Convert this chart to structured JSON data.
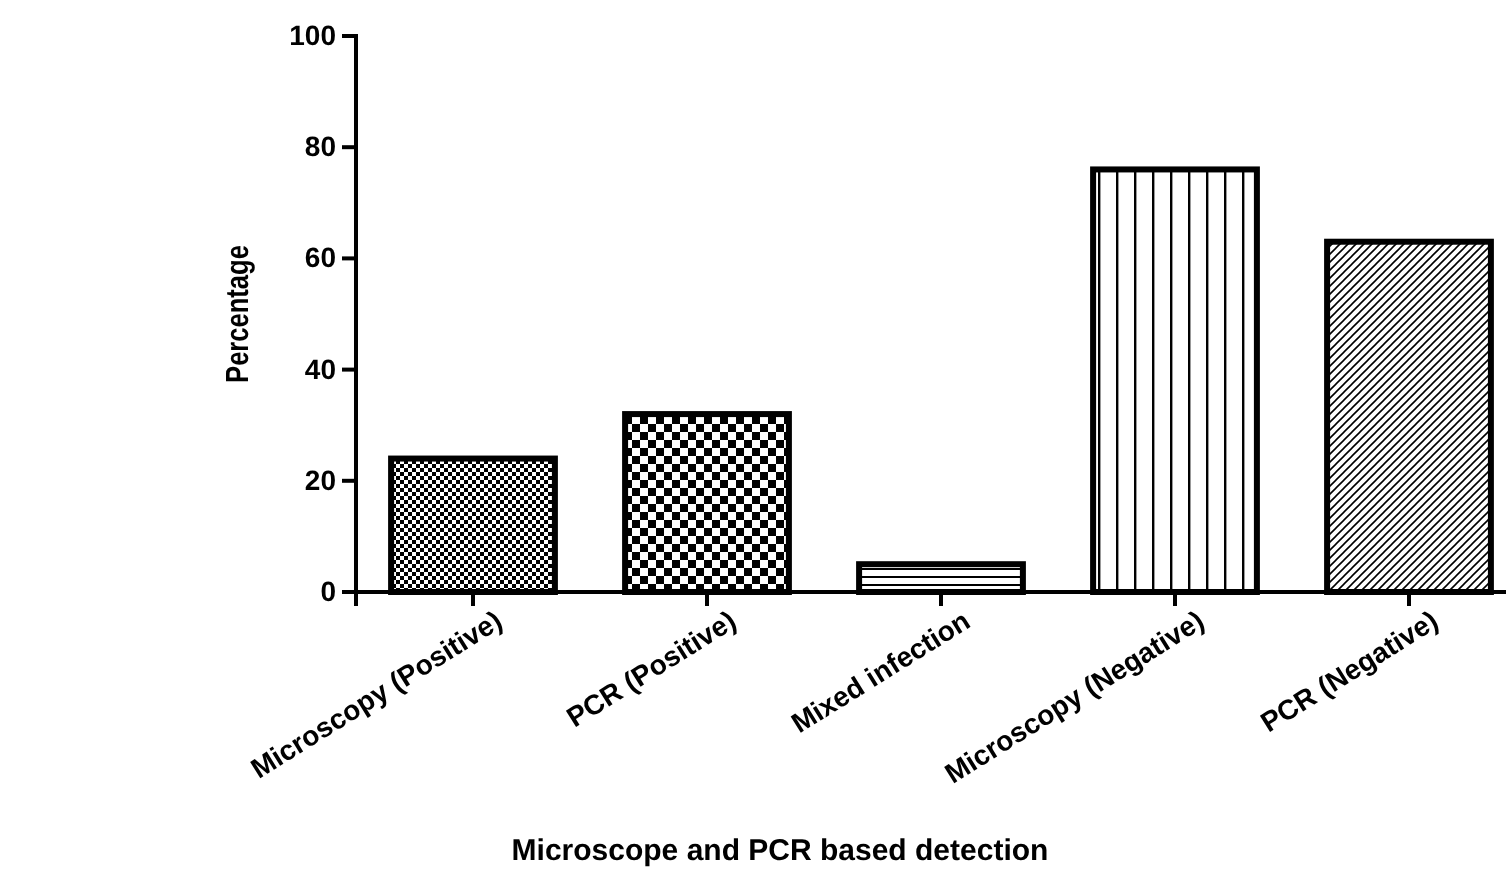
{
  "chart_data": {
    "type": "bar",
    "xlabel": "Microscope and PCR based detection",
    "ylabel": "Percentage",
    "categories": [
      "Microscopy (Positive)",
      "PCR (Positive)",
      "Mixed infection",
      "Microscopy (Negative)",
      "PCR (Negative)"
    ],
    "values": [
      24,
      32,
      5,
      76,
      63
    ],
    "color": "#000000",
    "ylim": [
      0,
      100
    ],
    "yticks": [
      0,
      20,
      40,
      60,
      80,
      100
    ],
    "grid": false
  }
}
